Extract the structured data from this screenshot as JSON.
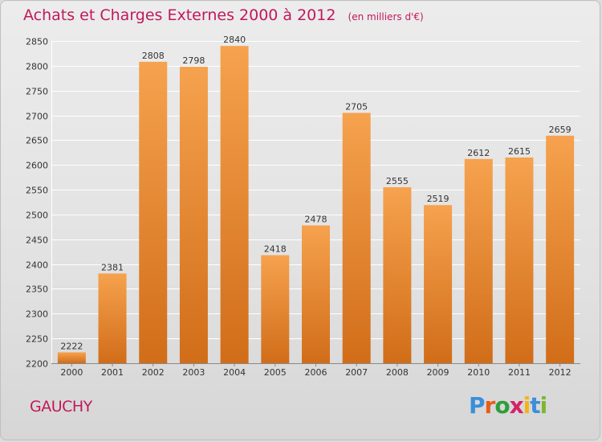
{
  "header": {
    "title": "Achats et Charges Externes 2000 à 2012",
    "unit_note": "(en milliers d'€)"
  },
  "footer": {
    "commune": "GAUCHY",
    "logo_text": "Proxiti"
  },
  "colors": {
    "bar_light": "#f6a24e",
    "bar_dark": "#d16d19",
    "title": "#c2185b",
    "grid": "#ffffff"
  },
  "chart_data": {
    "type": "bar",
    "title": "Achats et Charges Externes 2000 à 2012",
    "subtitle": "(en milliers d'€)",
    "categories": [
      "2000",
      "2001",
      "2002",
      "2003",
      "2004",
      "2005",
      "2006",
      "2007",
      "2008",
      "2009",
      "2010",
      "2011",
      "2012"
    ],
    "values": [
      2222,
      2381,
      2808,
      2798,
      2840,
      2418,
      2478,
      2705,
      2555,
      2519,
      2612,
      2615,
      2659
    ],
    "ylim": [
      2200,
      2850
    ],
    "yticks": [
      2200,
      2250,
      2300,
      2350,
      2400,
      2450,
      2500,
      2550,
      2600,
      2650,
      2700,
      2750,
      2800,
      2850
    ],
    "grid": true,
    "data_labels": true
  }
}
